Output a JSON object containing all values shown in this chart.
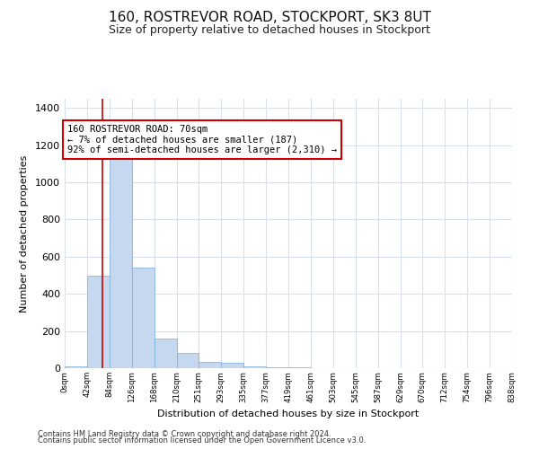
{
  "title": "160, ROSTREVOR ROAD, STOCKPORT, SK3 8UT",
  "subtitle": "Size of property relative to detached houses in Stockport",
  "xlabel": "Distribution of detached houses by size in Stockport",
  "ylabel": "Number of detached properties",
  "footer1": "Contains HM Land Registry data © Crown copyright and database right 2024.",
  "footer2": "Contains public sector information licensed under the Open Government Licence v3.0.",
  "bar_color": "#c5d8f0",
  "bar_edge_color": "#7aadd4",
  "grid_color": "#d8e0ee",
  "annotation_box_color": "#cc0000",
  "vline_color": "#cc0000",
  "bin_edges": [
    0,
    42,
    84,
    126,
    168,
    210,
    251,
    293,
    335,
    377,
    419,
    461,
    503,
    545,
    587,
    629,
    670,
    712,
    754,
    796,
    838
  ],
  "bar_heights": [
    10,
    500,
    1150,
    540,
    160,
    80,
    35,
    27,
    12,
    5,
    5,
    0,
    0,
    0,
    0,
    0,
    0,
    0,
    0,
    0
  ],
  "property_size": 70,
  "annotation_text": "160 ROSTREVOR ROAD: 70sqm\n← 7% of detached houses are smaller (187)\n92% of semi-detached houses are larger (2,310) →",
  "ylim": [
    0,
    1450
  ],
  "yticks": [
    0,
    200,
    400,
    600,
    800,
    1000,
    1200,
    1400
  ],
  "bg_color": "#ffffff",
  "title_fontsize": 11,
  "subtitle_fontsize": 9,
  "ylabel_fontsize": 8,
  "xlabel_fontsize": 8,
  "footer_fontsize": 6,
  "ann_fontsize": 7.5
}
